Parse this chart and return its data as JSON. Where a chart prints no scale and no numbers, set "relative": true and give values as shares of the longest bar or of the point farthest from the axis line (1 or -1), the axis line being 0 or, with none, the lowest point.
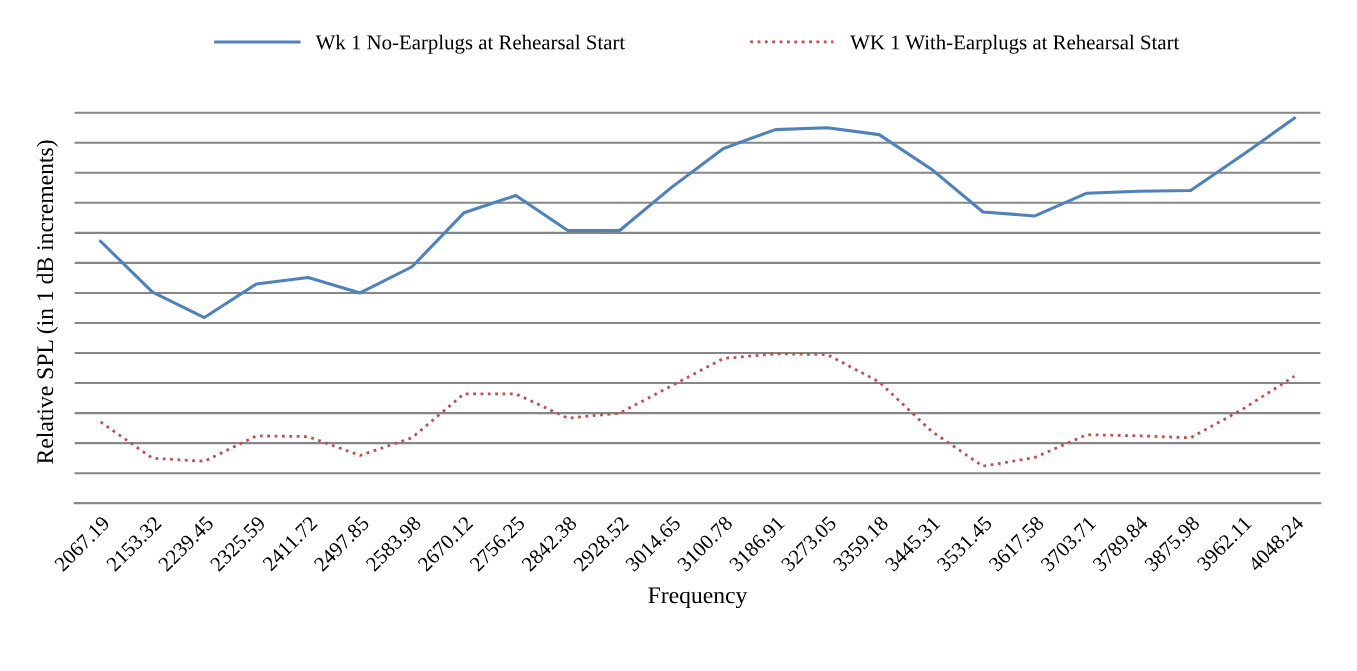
{
  "chart_data": {
    "type": "line",
    "xlabel": "Frequency",
    "ylabel": "Relative SPL (in 1 dB increments)",
    "relative": true,
    "grid": "y",
    "legend": "top",
    "marker": "none",
    "categories": [
      "2067.19",
      "2153.32",
      "2239.45",
      "2325.59",
      "2411.72",
      "2497.85",
      "2583.98",
      "2670.12",
      "2756.25",
      "2842.38",
      "2928.52",
      "3014.65",
      "3100.78",
      "3186.91",
      "3273.05",
      "3359.18",
      "3445.31",
      "3531.45",
      "3617.58",
      "3703.71",
      "3789.84",
      "3875.98",
      "3962.11",
      "4048.24"
    ],
    "series": [
      {
        "name": "Wk 1 No-Earplugs at Rehearsal Start",
        "color": "#4f81bd",
        "line_style": "solid",
        "values": [
          0.68,
          0.548,
          0.482,
          0.569,
          0.586,
          0.546,
          0.614,
          0.754,
          0.799,
          0.708,
          0.708,
          0.82,
          0.921,
          0.97,
          0.975,
          0.957,
          0.868,
          0.756,
          0.746,
          0.805,
          0.81,
          0.812,
          0.904,
          1
        ]
      },
      {
        "name": "WK 1 With-Earplugs at Rehearsal Start",
        "color": "#c0504d",
        "line_style": "dotted",
        "values": [
          0.211,
          0.117,
          0.109,
          0.175,
          0.173,
          0.124,
          0.17,
          0.284,
          0.284,
          0.221,
          0.234,
          0.305,
          0.376,
          0.388,
          0.386,
          0.315,
          0.188,
          0.096,
          0.119,
          0.178,
          0.175,
          0.17,
          0.244,
          0.33
        ]
      }
    ]
  }
}
